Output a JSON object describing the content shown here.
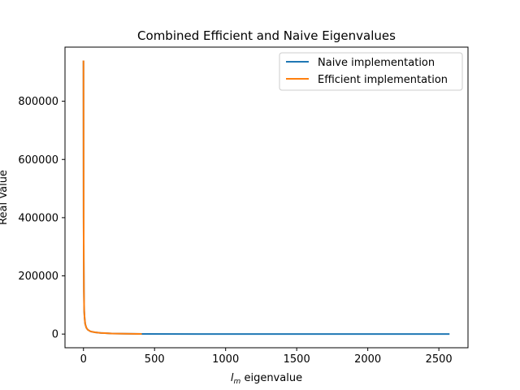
{
  "chart_data": {
    "type": "line",
    "title": "Combined Efficient and Naive Eigenvalues",
    "xlabel_main": "l",
    "xlabel_sub": "m",
    "xlabel_rest": " eigenvalue",
    "ylabel": "Real Value",
    "xlim": [
      -130,
      2705
    ],
    "ylim": [
      -47000,
      986000
    ],
    "x_ticks": [
      0,
      500,
      1000,
      1500,
      2000,
      2500
    ],
    "y_ticks": [
      0,
      200000,
      400000,
      600000,
      800000
    ],
    "grid": false,
    "legend_position": "top-right",
    "series": [
      {
        "name": "Naive implementation",
        "color": "#1f77b4",
        "x": [
          0,
          1,
          2,
          3,
          5,
          8,
          12,
          20,
          30,
          50,
          80,
          120,
          200,
          300,
          420,
          800,
          1500,
          2000,
          2575
        ],
        "y": [
          940000,
          400000,
          250000,
          150000,
          80000,
          55000,
          35000,
          22000,
          15000,
          9000,
          6000,
          4000,
          2000,
          1000,
          500,
          200,
          100,
          50,
          10
        ]
      },
      {
        "name": "Efficient implementation",
        "color": "#ff7f0e",
        "x": [
          0,
          1,
          2,
          3,
          5,
          8,
          12,
          20,
          30,
          50,
          80,
          120,
          200,
          300,
          410
        ],
        "y": [
          940000,
          400000,
          250000,
          150000,
          80000,
          55000,
          35000,
          22000,
          15000,
          9000,
          6000,
          4000,
          2000,
          1000,
          500
        ]
      }
    ]
  }
}
